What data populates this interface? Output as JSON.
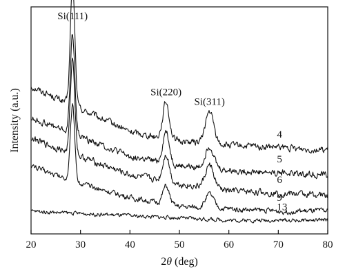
{
  "chart_data": {
    "type": "line",
    "xlabel_prefix": "2",
    "xlabel_symbol": "θ",
    "xlabel_suffix": " (deg)",
    "ylabel": "Intensity (a.u.)",
    "xlim": [
      20,
      80
    ],
    "ylim": [
      0,
      100
    ],
    "x_ticks": [
      20,
      30,
      40,
      50,
      60,
      70,
      80
    ],
    "grid": false,
    "peaks": [
      {
        "label": "Si(111)",
        "x": 28.4
      },
      {
        "label": "Si(220)",
        "x": 47.3
      },
      {
        "label": "Si(311)",
        "x": 56.1
      }
    ],
    "series": [
      {
        "name": "4",
        "label_x": 70,
        "baseline": [
          [
            20,
            65
          ],
          [
            30,
            55
          ],
          [
            40,
            45
          ],
          [
            50,
            41
          ],
          [
            60,
            39
          ],
          [
            70,
            38
          ],
          [
            80,
            37
          ]
        ],
        "peaks": [
          [
            28.4,
            54,
            0.45
          ],
          [
            47.3,
            16,
            0.65
          ],
          [
            56.1,
            14,
            0.85
          ]
        ],
        "noise": 1.2
      },
      {
        "name": "5",
        "label_x": 70,
        "baseline": [
          [
            20,
            51
          ],
          [
            30,
            43
          ],
          [
            40,
            34
          ],
          [
            50,
            30
          ],
          [
            60,
            28
          ],
          [
            70,
            27
          ],
          [
            80,
            26
          ]
        ],
        "peaks": [
          [
            28.4,
            44,
            0.45
          ],
          [
            47.3,
            14,
            0.65
          ],
          [
            56.1,
            10,
            0.85
          ]
        ],
        "noise": 1.2
      },
      {
        "name": "6",
        "label_x": 70,
        "baseline": [
          [
            20,
            42
          ],
          [
            30,
            34
          ],
          [
            40,
            26
          ],
          [
            50,
            22
          ],
          [
            60,
            19
          ],
          [
            70,
            18
          ],
          [
            80,
            17
          ]
        ],
        "peaks": [
          [
            28.4,
            42,
            0.45
          ],
          [
            47.3,
            12,
            0.65
          ],
          [
            56.1,
            10,
            0.85
          ]
        ],
        "noise": 1.2
      },
      {
        "name": "9",
        "label_x": 70,
        "baseline": [
          [
            20,
            30
          ],
          [
            30,
            22
          ],
          [
            40,
            16
          ],
          [
            50,
            12
          ],
          [
            60,
            11
          ],
          [
            70,
            10
          ],
          [
            80,
            10
          ]
        ],
        "peaks": [
          [
            28.4,
            33,
            0.45
          ],
          [
            47.3,
            8,
            0.65
          ],
          [
            56.1,
            6,
            0.85
          ]
        ],
        "noise": 1.0
      },
      {
        "name": "13",
        "label_x": 70,
        "baseline": [
          [
            20,
            10
          ],
          [
            30,
            9
          ],
          [
            40,
            8
          ],
          [
            50,
            7
          ],
          [
            60,
            6
          ],
          [
            70,
            6
          ],
          [
            80,
            6
          ]
        ],
        "peaks": [],
        "noise": 0.7
      }
    ]
  }
}
